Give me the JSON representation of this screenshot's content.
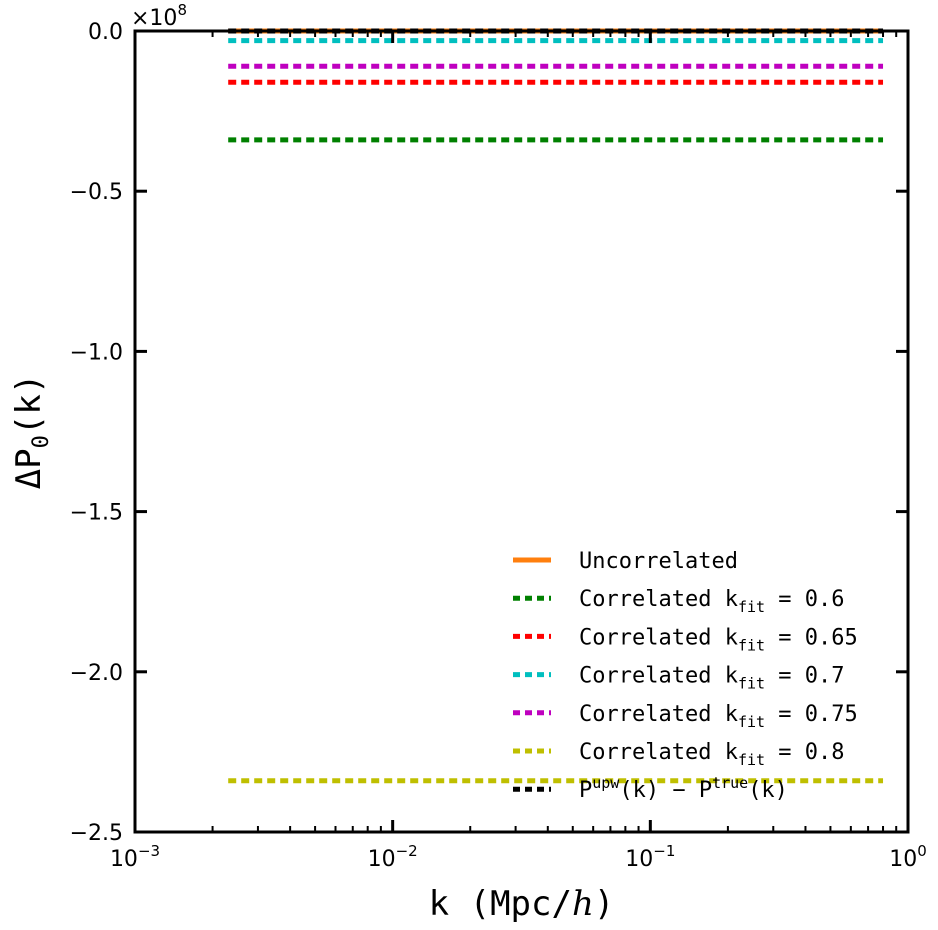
{
  "chart_data": {
    "type": "line",
    "title": "",
    "xlabel": "k (Mpc/h)",
    "ylabel": "ΔP0(k)",
    "xscale": "log",
    "xlim": [
      0.001,
      1
    ],
    "ylim": [
      -2.5,
      0.0
    ],
    "y_multiplier": "×10^8",
    "grid": false,
    "legend_position": "lower-right",
    "x_ticks": [
      {
        "value": 0.001,
        "base": "10",
        "exp": "−3"
      },
      {
        "value": 0.01,
        "base": "10",
        "exp": "−2"
      },
      {
        "value": 0.1,
        "base": "10",
        "exp": "−1"
      },
      {
        "value": 1,
        "base": "10",
        "exp": "0"
      }
    ],
    "y_ticks": [
      {
        "value": 0.0,
        "label": "0.0"
      },
      {
        "value": -0.5,
        "label": "−0.5"
      },
      {
        "value": -1.0,
        "label": "−1.0"
      },
      {
        "value": -1.5,
        "label": "−1.5"
      },
      {
        "value": -2.0,
        "label": "−2.0"
      },
      {
        "value": -2.5,
        "label": "−2.5"
      }
    ],
    "series": [
      {
        "name": "Uncorrelated",
        "color": "#ff7f0e",
        "dash": "solid",
        "x": [
          0.0023,
          0.8
        ],
        "y": [
          0.0,
          0.0
        ]
      },
      {
        "name": "Correlated k_fit = 0.6",
        "legend_main": "Correlated k",
        "legend_sub": "fit",
        "legend_tail": " = 0.6",
        "color": "#008000",
        "dash": "dotted",
        "x": [
          0.0023,
          0.8
        ],
        "y": [
          -0.34,
          -0.34
        ]
      },
      {
        "name": "Correlated k_fit = 0.65",
        "legend_main": "Correlated k",
        "legend_sub": "fit",
        "legend_tail": " = 0.65",
        "color": "#ff0000",
        "dash": "dotted",
        "x": [
          0.0023,
          0.8
        ],
        "y": [
          -0.16,
          -0.16
        ]
      },
      {
        "name": "Correlated k_fit = 0.7",
        "legend_main": "Correlated k",
        "legend_sub": "fit",
        "legend_tail": " = 0.7",
        "color": "#00bfbf",
        "dash": "dotted",
        "x": [
          0.0023,
          0.8
        ],
        "y": [
          -0.03,
          -0.03
        ]
      },
      {
        "name": "Correlated k_fit = 0.75",
        "legend_main": "Correlated k",
        "legend_sub": "fit",
        "legend_tail": " = 0.75",
        "color": "#bf00bf",
        "dash": "dotted",
        "x": [
          0.0023,
          0.8
        ],
        "y": [
          -0.11,
          -0.11
        ]
      },
      {
        "name": "Correlated k_fit = 0.8",
        "legend_main": "Correlated k",
        "legend_sub": "fit",
        "legend_tail": " = 0.8",
        "color": "#bfbf00",
        "dash": "dotted",
        "x": [
          0.0023,
          0.8
        ],
        "y": [
          -2.34,
          -2.34
        ]
      },
      {
        "name": "P^upw(k) − P^true(k)",
        "legend_main": "P",
        "legend_sup1": "upw",
        "legend_mid": "(k) − P",
        "legend_sup2": "true",
        "legend_tail2": "(k)",
        "color": "#000000",
        "dash": "dotted",
        "x": [
          0.0023,
          0.8
        ],
        "y": [
          0.0,
          0.0
        ]
      }
    ]
  }
}
